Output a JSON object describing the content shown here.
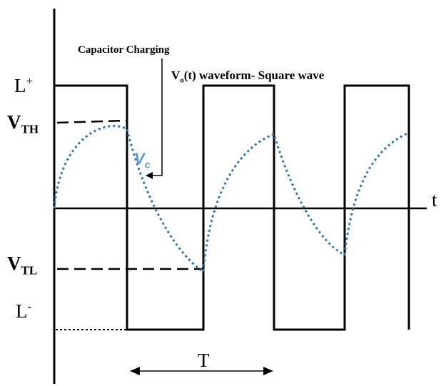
{
  "labels": {
    "l_plus": "L",
    "l_plus_sup": "+",
    "vth": "V",
    "vth_sub": "TH",
    "vtl": "V",
    "vtl_sub": "TL",
    "l_minus": "L",
    "l_minus_sup": "-",
    "capacitor_charging": "Capacitor Charging",
    "waveform_pre": "V",
    "waveform_sub": "o",
    "waveform_post": "(t) waveform- Square wave",
    "vc": "V",
    "vc_sub": "c",
    "time_axis": "t",
    "period": "T"
  },
  "colors": {
    "stroke": "#000000",
    "capacitor_curve": "#2e75b6",
    "vc_label": "#5b9bd5"
  },
  "waveform": {
    "type": "square",
    "output_levels": [
      "L+",
      "L-"
    ],
    "thresholds": [
      "VTH",
      "VTL"
    ]
  }
}
